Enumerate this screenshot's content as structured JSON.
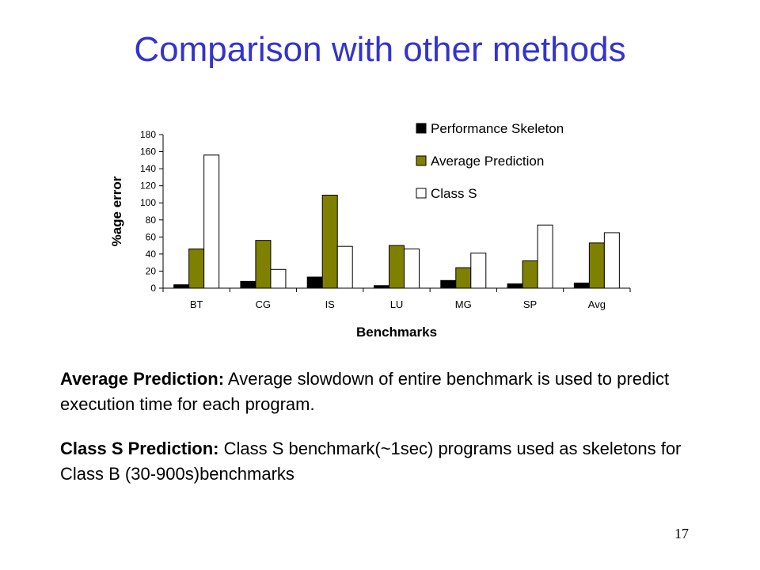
{
  "slide": {
    "title": "Comparison with other methods",
    "paragraphs": [
      {
        "lead": "Average Prediction:",
        "text": " Average slowdown of entire benchmark is used to predict execution time for each program."
      },
      {
        "lead": "Class S Prediction:",
        "text": " Class S benchmark(~1sec) programs used as skeletons for Class B (30-900s)benchmarks"
      }
    ],
    "page_number": "17"
  },
  "chart_data": {
    "type": "bar",
    "title": "",
    "xlabel": "Benchmarks",
    "ylabel": "%age error",
    "categories": [
      "BT",
      "CG",
      "IS",
      "LU",
      "MG",
      "SP",
      "Avg"
    ],
    "ylim": [
      0,
      180
    ],
    "yticks": [
      0,
      20,
      40,
      60,
      80,
      100,
      120,
      140,
      160,
      180
    ],
    "grid": false,
    "legend_position": "top-right",
    "series": [
      {
        "name": "Performance Skeleton",
        "color": "#000000",
        "values": [
          4,
          8,
          13,
          3,
          9,
          5,
          6
        ]
      },
      {
        "name": "Average Prediction",
        "color": "#808000",
        "values": [
          46,
          56,
          109,
          50,
          24,
          32,
          53
        ]
      },
      {
        "name": "Class S",
        "color": "#ffffff",
        "values": [
          156,
          22,
          49,
          46,
          41,
          74,
          65
        ]
      }
    ]
  }
}
